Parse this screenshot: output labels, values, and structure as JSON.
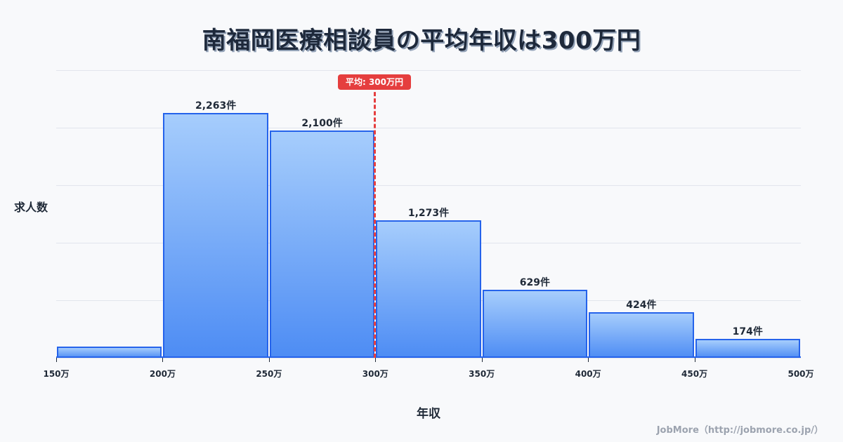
{
  "title": "南福岡医療相談員の平均年収は300万円",
  "chart_data": {
    "type": "bar",
    "title": "南福岡医療相談員の平均年収は300万円",
    "xlabel": "年収",
    "ylabel": "求人数",
    "categories": [
      "150万-200万",
      "200万-250万",
      "250万-300万",
      "300万-350万",
      "350万-400万",
      "400万-450万",
      "450万-500万"
    ],
    "bin_edges": [
      150,
      200,
      250,
      300,
      350,
      400,
      450,
      500
    ],
    "values": [
      104,
      2263,
      2100,
      1273,
      629,
      424,
      174
    ],
    "value_labels": [
      "",
      "2,263件",
      "2,100件",
      "1,273件",
      "629件",
      "424件",
      "174件"
    ],
    "x_tick_labels": [
      "150万",
      "200万",
      "250万",
      "300万",
      "350万",
      "400万",
      "450万",
      "500万"
    ],
    "ylim": [
      0,
      2660
    ],
    "grid": true,
    "mean": 300,
    "mean_label": "平均: 300万円",
    "colors": {
      "bar_top": "#a6cdfc",
      "bar_bottom": "#4d8cf4",
      "bar_border": "#2563eb",
      "mean_line": "#e53e3e"
    }
  },
  "axis": {
    "ylabel": "求人数",
    "xlabel": "年収"
  },
  "mean_badge": "平均: 300万円",
  "credit": "JobMore（http://jobmore.co.jp/）"
}
